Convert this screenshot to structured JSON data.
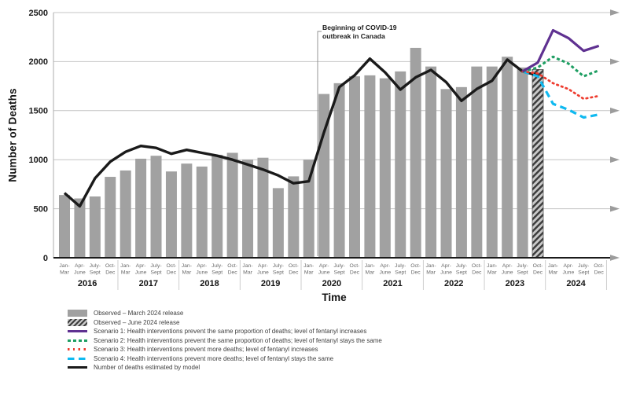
{
  "chart_data": {
    "type": "bar+line",
    "title": "",
    "ylabel": "Number of Deaths",
    "xlabel": "Time",
    "ylim": [
      0,
      2500
    ],
    "y_ticks": [
      0,
      500,
      1000,
      1500,
      2000,
      2500
    ],
    "grid": true,
    "gridline_arrowheads": "right",
    "legend_position": "below-left",
    "years": [
      "2016",
      "2017",
      "2018",
      "2019",
      "2020",
      "2021",
      "2022",
      "2023",
      "2024"
    ],
    "quarter_label_line1": [
      "Jan-",
      "Apr-",
      "July-",
      "Oct-"
    ],
    "quarter_label_line2": [
      "Mar",
      "June",
      "Sept",
      "Dec"
    ],
    "annotation": {
      "line1": "Beginning of COVID-19",
      "line2": "outbreak in Canada",
      "points_to": "between Jan-Mar 2020 and Apr-June 2020"
    },
    "colors": {
      "observed_bar": "#A1A1A1",
      "hatch_dark": "#3D3D3D",
      "hatch_light": "#C9C9C9",
      "scenario1": "#5F3191",
      "scenario2": "#1E9E62",
      "scenario3": "#EE3B2E",
      "scenario4": "#0FB9F0",
      "model": "#1A1A1A",
      "gridline": "#C4C4C4"
    },
    "series": [
      {
        "key": "observed_march",
        "label": "Observed – March 2024 release",
        "kind": "bar",
        "color": "#A1A1A1",
        "start": 0,
        "values": [
          640,
          605,
          625,
          825,
          890,
          1010,
          1040,
          880,
          960,
          930,
          1050,
          1070,
          1000,
          1020,
          710,
          830,
          1000,
          1670,
          1780,
          1850,
          1860,
          1830,
          1900,
          2140,
          1950,
          1720,
          1740,
          1950,
          1950,
          2050,
          1940
        ]
      },
      {
        "key": "observed_june",
        "label": "Observed – June 2024 release",
        "kind": "bar_hatched",
        "color": "#3D3D3D",
        "color2": "#C9C9C9",
        "start": 31,
        "values": [
          1920
        ]
      },
      {
        "key": "scenario_1",
        "label": "Scenario 1: Health interventions prevent the same proportion of deaths; level of fentanyl increases",
        "kind": "line",
        "color": "#5F3191",
        "dash": "solid",
        "width": 3.2,
        "start": 30,
        "values": [
          1900,
          1990,
          2320,
          2240,
          2110,
          2160
        ]
      },
      {
        "key": "scenario_2",
        "label": "Scenario 2: Health interventions prevent the same proportion of deaths; level of fentanyl stays the same",
        "kind": "line",
        "color": "#1E9E62",
        "dash": "4 3",
        "width": 3,
        "start": 30,
        "values": [
          1900,
          1940,
          2050,
          1980,
          1850,
          1910
        ]
      },
      {
        "key": "scenario_3",
        "label": "Scenario 3: Health interventions prevent more deaths; level of fentanyl increases",
        "kind": "line",
        "color": "#EE3B2E",
        "dash": "1.6 4.4",
        "linecap": "round",
        "width": 2.7,
        "start": 30,
        "values": [
          1900,
          1880,
          1780,
          1720,
          1620,
          1650
        ]
      },
      {
        "key": "scenario_4",
        "label": "Scenario 4: Health interventions prevent more deaths; level of fentanyl stays the same",
        "kind": "line",
        "color": "#0FB9F0",
        "dash": "8.5 5.5",
        "width": 3.2,
        "start": 30,
        "values": [
          1900,
          1850,
          1570,
          1510,
          1430,
          1460
        ]
      },
      {
        "key": "model",
        "label": "Number of deaths estimated by model",
        "kind": "line",
        "color": "#1A1A1A",
        "dash": "solid",
        "width": 3.4,
        "start": 0,
        "values": [
          660,
          525,
          810,
          980,
          1080,
          1140,
          1120,
          1060,
          1100,
          1070,
          1040,
          1000,
          950,
          900,
          840,
          760,
          780,
          1280,
          1740,
          1860,
          2030,
          1890,
          1715,
          1840,
          1915,
          1790,
          1600,
          1720,
          1805,
          2020,
          1900,
          1860
        ]
      }
    ],
    "legend_order": [
      "observed_march",
      "observed_june",
      "scenario_1",
      "scenario_2",
      "scenario_3",
      "scenario_4",
      "model"
    ]
  }
}
